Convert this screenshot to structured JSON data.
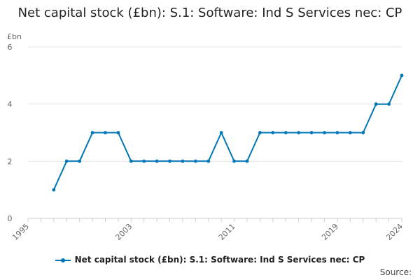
{
  "chart_data": {
    "type": "line",
    "title": "Net capital stock (£bn): S.1: Software: Ind S Services nec: CP",
    "xlabel": "",
    "ylabel": "£bn",
    "xlim": [
      1995,
      2024
    ],
    "ylim": [
      0,
      6
    ],
    "x_ticks": [
      1995,
      2003,
      2011,
      2019,
      2024
    ],
    "y_ticks": [
      0,
      2,
      4,
      6
    ],
    "grid": true,
    "legend_position": "bottom",
    "series": [
      {
        "name": "Net capital stock (£bn): S.1: Software: Ind S Services nec: CP",
        "color": "#0076b6",
        "x": [
          1997,
          1998,
          1999,
          2000,
          2001,
          2002,
          2003,
          2004,
          2005,
          2006,
          2007,
          2008,
          2009,
          2010,
          2011,
          2012,
          2013,
          2014,
          2015,
          2016,
          2017,
          2018,
          2019,
          2020,
          2021,
          2022,
          2023,
          2024
        ],
        "values": [
          1,
          2,
          2,
          3,
          3,
          3,
          2,
          2,
          2,
          2,
          2,
          2,
          2,
          3,
          2,
          2,
          3,
          3,
          3,
          3,
          3,
          3,
          3,
          3,
          3,
          4,
          4,
          5
        ]
      }
    ]
  },
  "source_label": "Source:"
}
